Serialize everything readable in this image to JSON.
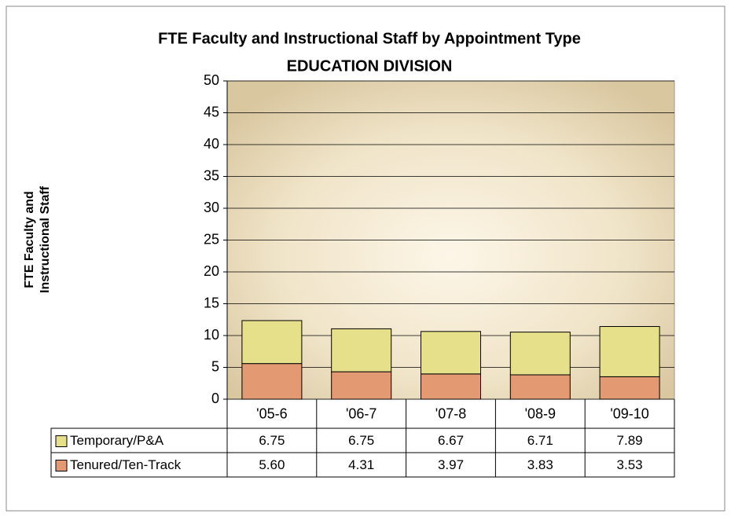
{
  "chart_data": {
    "type": "stacked_bar",
    "title": "FTE Faculty and Instructional Staff by Appointment Type",
    "subtitle": "EDUCATION DIVISION",
    "y_label": [
      "FTE Faculty and",
      "Instructional Staff"
    ],
    "categories": [
      "'05-6",
      "'06-7",
      "'07-8",
      "'08-9",
      "'09-10"
    ],
    "series": [
      {
        "name": "Tenured/Ten-Track",
        "color": "#e39a72",
        "values": [
          5.6,
          4.31,
          3.97,
          3.83,
          3.53
        ],
        "value_labels": [
          "5.60",
          "4.31",
          "3.97",
          "3.83",
          "3.53"
        ]
      },
      {
        "name": "Temporary/P&A",
        "color": "#e6e08a",
        "values": [
          6.75,
          6.75,
          6.67,
          6.71,
          7.89
        ]
      }
    ],
    "ylim": [
      0,
      50
    ],
    "yticks": [
      0,
      5,
      10,
      15,
      20,
      25,
      30,
      35,
      40,
      45,
      50
    ],
    "grid": true
  }
}
